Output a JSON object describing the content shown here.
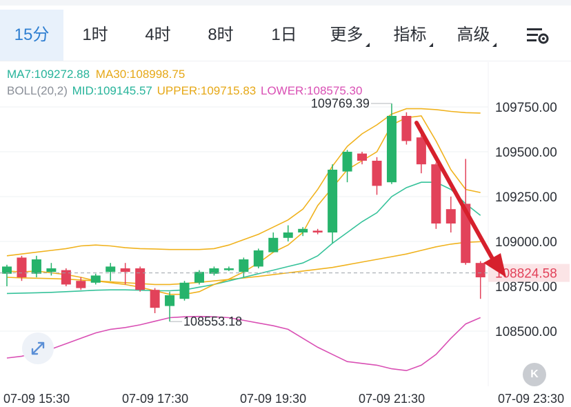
{
  "tabs": [
    {
      "label": "15分",
      "active": true,
      "dropdown": false
    },
    {
      "label": "1时",
      "active": false,
      "dropdown": false
    },
    {
      "label": "4时",
      "active": false,
      "dropdown": false
    },
    {
      "label": "8时",
      "active": false,
      "dropdown": false
    },
    {
      "label": "1日",
      "active": false,
      "dropdown": false
    },
    {
      "label": "更多",
      "active": false,
      "dropdown": true
    },
    {
      "label": "指标",
      "active": false,
      "dropdown": true
    },
    {
      "label": "高级",
      "active": false,
      "dropdown": true
    }
  ],
  "settings_icon": "chart-settings-icon",
  "legend": {
    "ma7": "MA7:109272.88",
    "ma30": "MA30:108998.75",
    "boll": "BOLL(20,2)",
    "mid": "MID:109145.57",
    "upper": "UPPER:109715.83",
    "lower": "LOWER:108575.30"
  },
  "colors": {
    "up": "#26b36b",
    "down": "#e2425a",
    "ma7": "#f0b21d",
    "ma30": "#f0b21d",
    "mid": "#35c29a",
    "upper": "#f0b21d",
    "lower": "#d94fb4",
    "current_price_bg": "#fbe4e6",
    "current_price_text": "#e2425a",
    "arrow": "#d6202c"
  },
  "chart_data": {
    "type": "candlestick",
    "ylim": [
      108400,
      109850
    ],
    "y_ticks": [
      109750,
      109500,
      109250,
      109000,
      108750,
      108500
    ],
    "y_tick_labels": [
      "109750.00",
      "109500.00",
      "109250.00",
      "109000.00",
      "108750.00",
      "108500.00"
    ],
    "x_tick_labels": [
      "07-09 15:30",
      "07-09 17:30",
      "07-09 19:30",
      "07-09 21:30",
      "07-09 23:30"
    ],
    "x_tick_index": [
      2,
      10,
      18,
      26,
      34
    ],
    "candles": [
      {
        "o": 108820,
        "c": 108860,
        "h": 108870,
        "l": 108750
      },
      {
        "o": 108910,
        "c": 108800,
        "h": 108920,
        "l": 108780
      },
      {
        "o": 108820,
        "c": 108900,
        "h": 108920,
        "l": 108800
      },
      {
        "o": 108830,
        "c": 108850,
        "h": 108880,
        "l": 108810
      },
      {
        "o": 108840,
        "c": 108760,
        "h": 108850,
        "l": 108750
      },
      {
        "o": 108780,
        "c": 108740,
        "h": 108800,
        "l": 108730
      },
      {
        "o": 108770,
        "c": 108810,
        "h": 108820,
        "l": 108760
      },
      {
        "o": 108830,
        "c": 108860,
        "h": 108880,
        "l": 108780
      },
      {
        "o": 108850,
        "c": 108830,
        "h": 108880,
        "l": 108760
      },
      {
        "o": 108850,
        "c": 108730,
        "h": 108860,
        "l": 108720
      },
      {
        "o": 108730,
        "c": 108630,
        "h": 108740,
        "l": 108600
      },
      {
        "o": 108640,
        "c": 108700,
        "h": 108720,
        "l": 108553.18
      },
      {
        "o": 108680,
        "c": 108770,
        "h": 108780,
        "l": 108670
      },
      {
        "o": 108770,
        "c": 108830,
        "h": 108840,
        "l": 108760
      },
      {
        "o": 108820,
        "c": 108850,
        "h": 108860,
        "l": 108810
      },
      {
        "o": 108840,
        "c": 108850,
        "h": 108860,
        "l": 108835
      },
      {
        "o": 108830,
        "c": 108900,
        "h": 108910,
        "l": 108800
      },
      {
        "o": 108860,
        "c": 108950,
        "h": 108960,
        "l": 108850
      },
      {
        "o": 108940,
        "c": 109020,
        "h": 109050,
        "l": 108940
      },
      {
        "o": 109020,
        "c": 109050,
        "h": 109090,
        "l": 109000
      },
      {
        "o": 109050,
        "c": 109070,
        "h": 109080,
        "l": 109030
      },
      {
        "o": 109060,
        "c": 109050,
        "h": 109070,
        "l": 109040
      },
      {
        "o": 109050,
        "c": 109400,
        "h": 109430,
        "l": 108990
      },
      {
        "o": 109390,
        "c": 109500,
        "h": 109510,
        "l": 109330
      },
      {
        "o": 109490,
        "c": 109450,
        "h": 109500,
        "l": 109430
      },
      {
        "o": 109450,
        "c": 109310,
        "h": 109470,
        "l": 109260
      },
      {
        "o": 109330,
        "c": 109700,
        "h": 109769.39,
        "l": 109320
      },
      {
        "o": 109700,
        "c": 109560,
        "h": 109720,
        "l": 109540
      },
      {
        "o": 109580,
        "c": 109430,
        "h": 109600,
        "l": 109380
      },
      {
        "o": 109430,
        "c": 109100,
        "h": 109440,
        "l": 109070
      },
      {
        "o": 109180,
        "c": 109100,
        "h": 109250,
        "l": 109050
      },
      {
        "o": 109210,
        "c": 108880,
        "h": 109460,
        "l": 108870
      },
      {
        "o": 108880,
        "c": 108800,
        "h": 108890,
        "l": 108680
      }
    ],
    "ma7": [
      108835,
      108830,
      108835,
      108825,
      108815,
      108800,
      108780,
      108770,
      108760,
      108745,
      108725,
      108705,
      108705,
      108720,
      108760,
      108790,
      108830,
      108880,
      108940,
      108980,
      109050,
      109200,
      109300,
      109400,
      109450,
      109500,
      109650,
      109690,
      109700,
      109560,
      109400,
      109290,
      109272.88
    ],
    "ma30": [
      108800,
      108797,
      108795,
      108793,
      108790,
      108785,
      108780,
      108775,
      108770,
      108765,
      108760,
      108760,
      108765,
      108772,
      108780,
      108788,
      108796,
      108805,
      108815,
      108825,
      108835,
      108845,
      108855,
      108870,
      108885,
      108900,
      108915,
      108930,
      108950,
      108970,
      108985,
      108995,
      108998.75
    ],
    "mid": [
      108710,
      108712,
      108714,
      108716,
      108720,
      108724,
      108728,
      108730,
      108730,
      108728,
      108725,
      108725,
      108730,
      108745,
      108760,
      108780,
      108800,
      108820,
      108840,
      108860,
      108880,
      108920,
      108990,
      109050,
      109110,
      109160,
      109250,
      109300,
      109330,
      109330,
      109290,
      109210,
      109145.57
    ],
    "upper": [
      108920,
      108930,
      108940,
      108950,
      108960,
      108975,
      108980,
      108975,
      108965,
      108960,
      108958,
      108955,
      108955,
      108955,
      108960,
      108980,
      109010,
      109040,
      109080,
      109120,
      109180,
      109290,
      109420,
      109530,
      109600,
      109650,
      109710,
      109740,
      109740,
      109735,
      109725,
      109718,
      109715.83
    ],
    "lower": [
      108350,
      108360,
      108380,
      108400,
      108430,
      108460,
      108490,
      108510,
      108520,
      108535,
      108555,
      108575,
      108580,
      108582,
      108580,
      108575,
      108560,
      108545,
      108530,
      108510,
      108460,
      108410,
      108370,
      108330,
      108320,
      108310,
      108290,
      108280,
      108310,
      108370,
      108460,
      108540,
      108575.3
    ],
    "annotations": {
      "high_label": "109769.39",
      "low_label": "108553.18"
    },
    "current_price": 108824.58,
    "current_price_label": "108824.58"
  }
}
